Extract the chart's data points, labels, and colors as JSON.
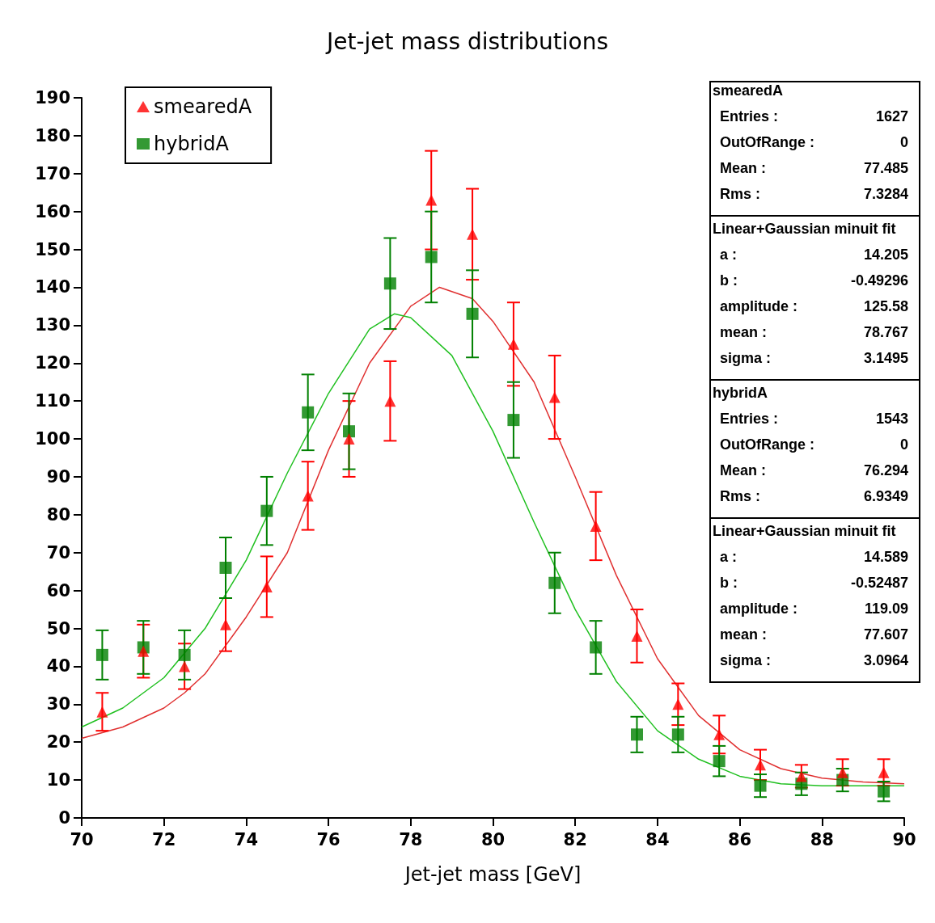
{
  "chart_data": {
    "type": "scatter",
    "title": "Jet-jet mass distributions",
    "xlabel": "Jet-jet mass [GeV]",
    "xlim": [
      70,
      90
    ],
    "xticks": [
      70,
      72,
      74,
      76,
      78,
      80,
      82,
      84,
      86,
      88,
      90
    ],
    "ylim": [
      0,
      190
    ],
    "yticks": [
      0,
      10,
      20,
      30,
      40,
      50,
      60,
      70,
      80,
      90,
      100,
      110,
      120,
      130,
      140,
      150,
      160,
      170,
      180,
      190
    ],
    "grid": false,
    "legend": "top left",
    "x": [
      70.5,
      71.5,
      72.5,
      73.5,
      74.5,
      75.5,
      76.5,
      77.5,
      78.5,
      79.5,
      80.5,
      81.5,
      82.5,
      83.5,
      84.5,
      85.5,
      86.5,
      87.5,
      88.5,
      89.5
    ],
    "series": [
      {
        "name": "smearedA",
        "marker": "triangle",
        "color": "#ff0000",
        "values": [
          28,
          44,
          40,
          51,
          61,
          85,
          100,
          110,
          163,
          154,
          125,
          111,
          77,
          48,
          30,
          22,
          14,
          11,
          12,
          12
        ],
        "errors": [
          5,
          7,
          6,
          7,
          8,
          9,
          10,
          10.5,
          13,
          12,
          11,
          11,
          9,
          7,
          5.5,
          5,
          4,
          3,
          3.5,
          3.5
        ]
      },
      {
        "name": "hybridA",
        "marker": "square",
        "color": "#008000",
        "values": [
          43,
          45,
          43,
          66,
          81,
          107,
          102,
          141,
          148,
          133,
          105,
          62,
          45,
          22,
          22,
          15,
          8.5,
          9,
          10,
          7
        ],
        "errors": [
          6.5,
          7,
          6.5,
          8,
          9,
          10,
          10,
          12,
          12,
          11.5,
          10,
          8,
          7,
          4.7,
          4.7,
          4,
          3,
          3,
          3,
          2.6
        ]
      },
      {
        "type": "line",
        "marker": "none",
        "color": "#e03030",
        "x": [
          70,
          71,
          72,
          72.5,
          73,
          74,
          75,
          76,
          77,
          78,
          78.7,
          79.5,
          80,
          81,
          82,
          83,
          84,
          85,
          86,
          87,
          88,
          89,
          90
        ],
        "values": [
          21,
          24,
          29,
          33,
          38,
          53,
          70,
          97,
          120,
          135,
          140,
          137,
          131,
          115,
          90,
          64,
          42,
          27,
          18,
          13,
          10.5,
          9.5,
          9
        ]
      },
      {
        "type": "line",
        "marker": "none",
        "color": "#20c020",
        "x": [
          70,
          71,
          72,
          73,
          74,
          75,
          76,
          77,
          77.6,
          78,
          79,
          80,
          81,
          82,
          83,
          84,
          85,
          86,
          87,
          88,
          89,
          90
        ],
        "values": [
          24,
          29,
          37,
          50,
          68,
          91,
          112,
          129,
          133,
          132,
          122,
          102,
          78,
          55,
          36,
          23,
          15.5,
          11,
          9,
          8.5,
          8.5,
          8.5
        ]
      }
    ],
    "annotations": [
      "smearedA",
      "Entries : 1627",
      "OutOfRange : 0",
      "Mean : 77.485",
      "Rms : 7.3284",
      "Linear+Gaussian minuit fit",
      "a : 14.205",
      "b : -0.49296",
      "amplitude : 125.58",
      "mean : 78.767",
      "sigma : 3.1495",
      "hybridA",
      "Entries : 1543",
      "OutOfRange : 0",
      "Mean : 76.294",
      "Rms : 6.9349",
      "Linear+Gaussian minuit fit",
      "a : 14.589",
      "b : -0.52487",
      "amplitude : 119.09",
      "mean : 77.607",
      "sigma : 3.0964"
    ]
  }
}
